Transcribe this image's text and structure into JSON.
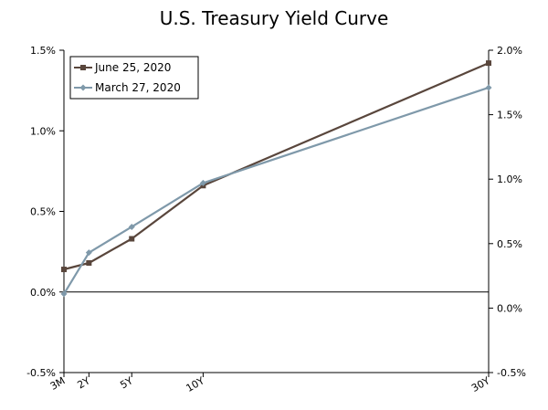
{
  "chart_data": {
    "type": "line",
    "title": "U.S. Treasury Yield Curve",
    "xlabel": "",
    "ylabel": "",
    "categories": [
      "3M",
      "2Y",
      "5Y",
      "10Y",
      "30Y"
    ],
    "x_maturity_years": [
      0.25,
      2,
      5,
      10,
      30
    ],
    "x_range": [
      0.25,
      30
    ],
    "y_left": {
      "range": [
        -0.5,
        1.5
      ],
      "ticks": [
        -0.5,
        0.0,
        0.5,
        1.0,
        1.5
      ],
      "tick_labels": [
        "-0.5%",
        "0.0%",
        "0.5%",
        "1.0%",
        "1.5%"
      ]
    },
    "y_right": {
      "range": [
        -0.5,
        2.0
      ],
      "ticks": [
        -0.5,
        0.0,
        0.5,
        1.0,
        1.5,
        2.0
      ],
      "tick_labels": [
        "-0.5%",
        "0.0%",
        "0.5%",
        "1.0%",
        "1.5%",
        "2.0%"
      ]
    },
    "series": [
      {
        "name": "June 25, 2020",
        "axis": "left",
        "color": "#59463c",
        "marker": "square",
        "values": [
          0.14,
          0.18,
          0.33,
          0.66,
          1.42
        ]
      },
      {
        "name": "March 27, 2020",
        "axis": "right",
        "color": "#7f99aa",
        "marker": "diamond",
        "values": [
          0.11,
          0.43,
          0.63,
          0.97,
          1.71
        ]
      }
    ],
    "zero_line": true,
    "grid": false,
    "legend": "top-left"
  }
}
